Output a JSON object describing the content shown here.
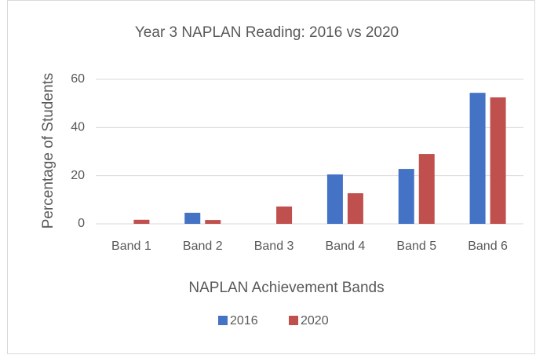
{
  "chart_data": {
    "type": "bar",
    "title": "Year 3 NAPLAN Reading: 2016 vs 2020",
    "x_label": "NAPLAN Achievement Bands",
    "y_label": "Percentage of Students",
    "categories": [
      "Band 1",
      "Band 2",
      "Band 3",
      "Band 4",
      "Band 5",
      "Band 6"
    ],
    "series": [
      {
        "name": "2016",
        "color": "#4472c4",
        "values": [
          0,
          4.6,
          0,
          20.5,
          22.8,
          54.4
        ]
      },
      {
        "name": "2020",
        "color": "#c0504d",
        "values": [
          1.7,
          1.6,
          7.2,
          12.7,
          29,
          52.5
        ]
      }
    ],
    "ylim": [
      0,
      60
    ],
    "yticks": [
      0,
      20,
      40,
      60
    ],
    "grid": true,
    "legend": "bottom"
  }
}
